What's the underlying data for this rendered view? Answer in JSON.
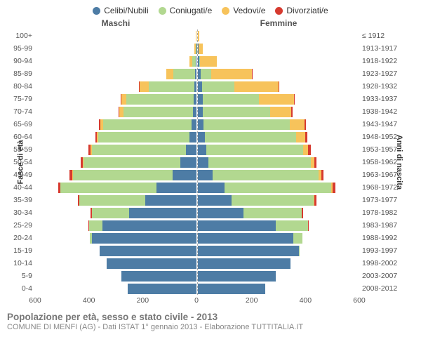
{
  "chart": {
    "type": "population-pyramid",
    "background_color": "#ffffff",
    "grid_color": "#aaaaaa",
    "label_fontsize": 10.5,
    "header_fontsize": 12,
    "title_fontsize": 13.5,
    "legend": [
      {
        "label": "Celibi/Nubili",
        "color": "#4d7ca5"
      },
      {
        "label": "Coniugati/e",
        "color": "#b2d890"
      },
      {
        "label": "Vedovi/e",
        "color": "#f7c35b"
      },
      {
        "label": "Divorziati/e",
        "color": "#d63a2f"
      }
    ],
    "header_left": "Maschi",
    "header_right": "Femmine",
    "ylabel_left": "Fasce di età",
    "ylabel_right": "Anni di nascita",
    "xmax": 600,
    "xticks": [
      600,
      400,
      200,
      0,
      200,
      400,
      600
    ],
    "rows": [
      {
        "age": "100+",
        "birth": "≤ 1912",
        "m": {
          "c": 0,
          "g": 0,
          "v": 2,
          "d": 0
        },
        "f": {
          "c": 0,
          "g": 0,
          "v": 4,
          "d": 0
        }
      },
      {
        "age": "95-99",
        "birth": "1913-1917",
        "m": {
          "c": 1,
          "g": 2,
          "v": 4,
          "d": 0
        },
        "f": {
          "c": 2,
          "g": 0,
          "v": 16,
          "d": 0
        }
      },
      {
        "age": "90-94",
        "birth": "1918-1922",
        "m": {
          "c": 3,
          "g": 14,
          "v": 8,
          "d": 0
        },
        "f": {
          "c": 4,
          "g": 4,
          "v": 62,
          "d": 0
        }
      },
      {
        "age": "85-89",
        "birth": "1923-1927",
        "m": {
          "c": 6,
          "g": 80,
          "v": 26,
          "d": 0
        },
        "f": {
          "c": 10,
          "g": 40,
          "v": 150,
          "d": 1
        }
      },
      {
        "age": "80-84",
        "birth": "1928-1932",
        "m": {
          "c": 8,
          "g": 170,
          "v": 34,
          "d": 1
        },
        "f": {
          "c": 15,
          "g": 120,
          "v": 165,
          "d": 2
        }
      },
      {
        "age": "75-79",
        "birth": "1933-1937",
        "m": {
          "c": 10,
          "g": 250,
          "v": 20,
          "d": 2
        },
        "f": {
          "c": 18,
          "g": 210,
          "v": 130,
          "d": 3
        }
      },
      {
        "age": "70-74",
        "birth": "1938-1942",
        "m": {
          "c": 12,
          "g": 260,
          "v": 15,
          "d": 2
        },
        "f": {
          "c": 18,
          "g": 250,
          "v": 80,
          "d": 3
        }
      },
      {
        "age": "65-69",
        "birth": "1943-1947",
        "m": {
          "c": 18,
          "g": 330,
          "v": 10,
          "d": 4
        },
        "f": {
          "c": 22,
          "g": 320,
          "v": 55,
          "d": 6
        }
      },
      {
        "age": "60-64",
        "birth": "1948-1952",
        "m": {
          "c": 25,
          "g": 340,
          "v": 6,
          "d": 6
        },
        "f": {
          "c": 25,
          "g": 340,
          "v": 35,
          "d": 7
        }
      },
      {
        "age": "55-59",
        "birth": "1953-1957",
        "m": {
          "c": 40,
          "g": 350,
          "v": 4,
          "d": 7
        },
        "f": {
          "c": 30,
          "g": 360,
          "v": 20,
          "d": 9
        }
      },
      {
        "age": "50-54",
        "birth": "1958-1962",
        "m": {
          "c": 60,
          "g": 360,
          "v": 3,
          "d": 8
        },
        "f": {
          "c": 40,
          "g": 380,
          "v": 12,
          "d": 10
        }
      },
      {
        "age": "45-49",
        "birth": "1963-1967",
        "m": {
          "c": 90,
          "g": 370,
          "v": 2,
          "d": 9
        },
        "f": {
          "c": 55,
          "g": 395,
          "v": 8,
          "d": 10
        }
      },
      {
        "age": "40-44",
        "birth": "1968-1972",
        "m": {
          "c": 150,
          "g": 355,
          "v": 1,
          "d": 9
        },
        "f": {
          "c": 100,
          "g": 395,
          "v": 5,
          "d": 12
        }
      },
      {
        "age": "35-39",
        "birth": "1973-1977",
        "m": {
          "c": 190,
          "g": 245,
          "v": 1,
          "d": 6
        },
        "f": {
          "c": 125,
          "g": 305,
          "v": 3,
          "d": 9
        }
      },
      {
        "age": "30-34",
        "birth": "1978-1982",
        "m": {
          "c": 250,
          "g": 140,
          "v": 0,
          "d": 3
        },
        "f": {
          "c": 170,
          "g": 215,
          "v": 1,
          "d": 5
        }
      },
      {
        "age": "25-29",
        "birth": "1983-1987",
        "m": {
          "c": 350,
          "g": 50,
          "v": 0,
          "d": 1
        },
        "f": {
          "c": 290,
          "g": 120,
          "v": 0,
          "d": 2
        }
      },
      {
        "age": "20-24",
        "birth": "1988-1992",
        "m": {
          "c": 390,
          "g": 6,
          "v": 0,
          "d": 0
        },
        "f": {
          "c": 355,
          "g": 35,
          "v": 0,
          "d": 0
        }
      },
      {
        "age": "15-19",
        "birth": "1993-1997",
        "m": {
          "c": 360,
          "g": 0,
          "v": 0,
          "d": 0
        },
        "f": {
          "c": 375,
          "g": 3,
          "v": 0,
          "d": 0
        }
      },
      {
        "age": "10-14",
        "birth": "1998-2002",
        "m": {
          "c": 335,
          "g": 0,
          "v": 0,
          "d": 0
        },
        "f": {
          "c": 345,
          "g": 0,
          "v": 0,
          "d": 0
        }
      },
      {
        "age": "5-9",
        "birth": "2003-2007",
        "m": {
          "c": 280,
          "g": 0,
          "v": 0,
          "d": 0
        },
        "f": {
          "c": 290,
          "g": 0,
          "v": 0,
          "d": 0
        }
      },
      {
        "age": "0-4",
        "birth": "2008-2012",
        "m": {
          "c": 255,
          "g": 0,
          "v": 0,
          "d": 0
        },
        "f": {
          "c": 250,
          "g": 0,
          "v": 0,
          "d": 0
        }
      }
    ],
    "title": "Popolazione per età, sesso e stato civile - 2013",
    "subtitle": "COMUNE DI MENFI (AG) - Dati ISTAT 1° gennaio 2013 - Elaborazione TUTTITALIA.IT"
  }
}
